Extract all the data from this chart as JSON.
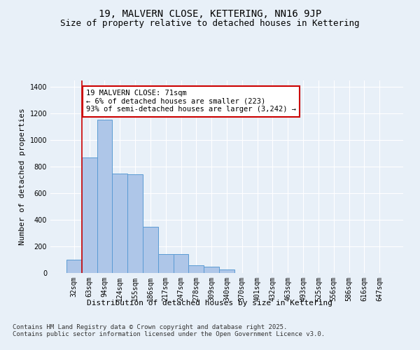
{
  "title": "19, MALVERN CLOSE, KETTERING, NN16 9JP",
  "subtitle": "Size of property relative to detached houses in Kettering",
  "xlabel": "Distribution of detached houses by size in Kettering",
  "ylabel": "Number of detached properties",
  "categories": [
    "32sqm",
    "63sqm",
    "94sqm",
    "124sqm",
    "155sqm",
    "186sqm",
    "217sqm",
    "247sqm",
    "278sqm",
    "309sqm",
    "340sqm",
    "370sqm",
    "401sqm",
    "432sqm",
    "463sqm",
    "493sqm",
    "525sqm",
    "556sqm",
    "586sqm",
    "616sqm",
    "647sqm"
  ],
  "values": [
    100,
    870,
    1155,
    750,
    745,
    350,
    140,
    145,
    60,
    50,
    25,
    0,
    0,
    0,
    0,
    0,
    0,
    0,
    0,
    0,
    0
  ],
  "bar_color": "#aec6e8",
  "bar_edge_color": "#5a9bd4",
  "background_color": "#e8f0f8",
  "grid_color": "#ffffff",
  "vline_x": 0.5,
  "vline_color": "#cc0000",
  "annotation_text": "19 MALVERN CLOSE: 71sqm\n← 6% of detached houses are smaller (223)\n93% of semi-detached houses are larger (3,242) →",
  "annotation_box_color": "#ffffff",
  "annotation_edge_color": "#cc0000",
  "ylim": [
    0,
    1450
  ],
  "yticks": [
    0,
    200,
    400,
    600,
    800,
    1000,
    1200,
    1400
  ],
  "footer_text": "Contains HM Land Registry data © Crown copyright and database right 2025.\nContains public sector information licensed under the Open Government Licence v3.0.",
  "title_fontsize": 10,
  "subtitle_fontsize": 9,
  "axis_label_fontsize": 8,
  "tick_fontsize": 7,
  "annotation_fontsize": 7.5,
  "footer_fontsize": 6.5
}
